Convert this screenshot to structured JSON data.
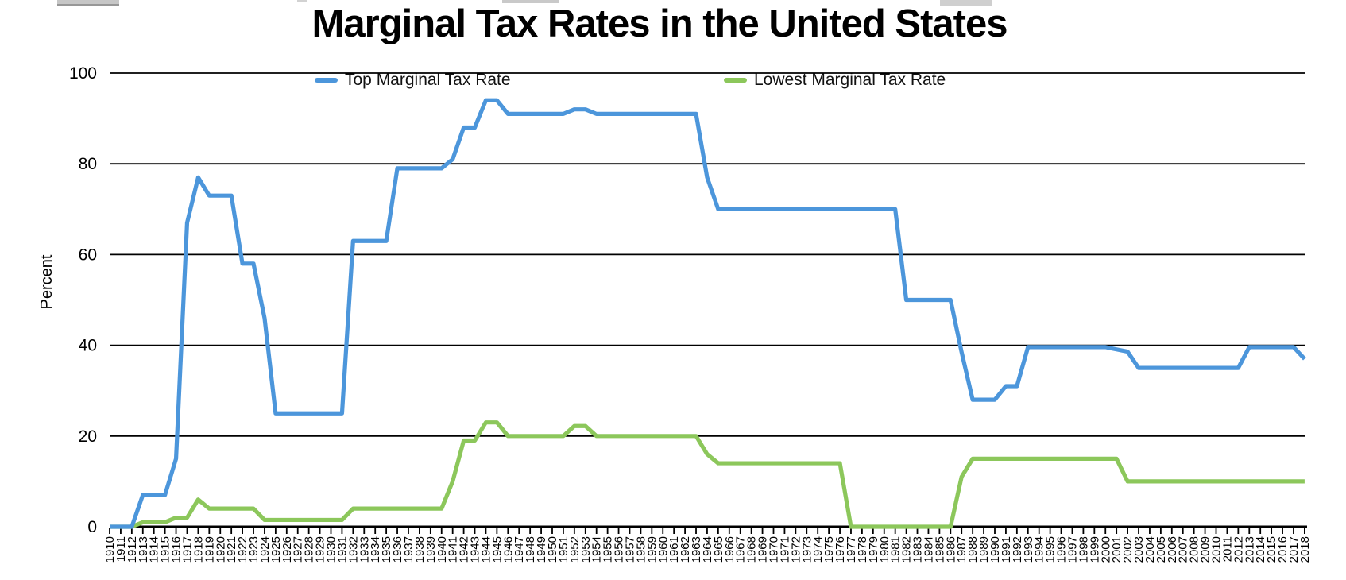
{
  "chart_data": {
    "type": "line",
    "title": "Marginal Tax Rates in the United States",
    "xlabel": "",
    "ylabel": "Percent",
    "ylim": [
      0,
      100
    ],
    "yticks": [
      0,
      20,
      40,
      60,
      80,
      100
    ],
    "grid": true,
    "legend_position": "top",
    "x": [
      1910,
      1911,
      1912,
      1913,
      1914,
      1915,
      1916,
      1917,
      1918,
      1919,
      1920,
      1921,
      1922,
      1923,
      1924,
      1925,
      1926,
      1927,
      1928,
      1929,
      1930,
      1931,
      1932,
      1933,
      1934,
      1935,
      1936,
      1937,
      1938,
      1939,
      1940,
      1941,
      1942,
      1943,
      1944,
      1945,
      1946,
      1947,
      1948,
      1949,
      1950,
      1951,
      1952,
      1953,
      1954,
      1955,
      1956,
      1957,
      1958,
      1959,
      1960,
      1961,
      1962,
      1963,
      1964,
      1965,
      1966,
      1967,
      1968,
      1969,
      1970,
      1971,
      1972,
      1973,
      1974,
      1975,
      1976,
      1977,
      1978,
      1979,
      1980,
      1981,
      1982,
      1983,
      1984,
      1985,
      1986,
      1987,
      1988,
      1989,
      1990,
      1991,
      1992,
      1993,
      1994,
      1995,
      1996,
      1997,
      1998,
      1999,
      2000,
      2001,
      2002,
      2003,
      2004,
      2005,
      2006,
      2007,
      2008,
      2009,
      2010,
      2011,
      2012,
      2013,
      2014,
      2015,
      2016,
      2017,
      2018
    ],
    "series": [
      {
        "name": "Top Marginal Tax Rate",
        "color": "#4c96db",
        "values": [
          0,
          0,
          0,
          7,
          7,
          7,
          15,
          67,
          77,
          73,
          73,
          73,
          58,
          58,
          46,
          25,
          25,
          25,
          25,
          25,
          25,
          25,
          63,
          63,
          63,
          63,
          79,
          79,
          79,
          79,
          79,
          81,
          88,
          88,
          94,
          94,
          91,
          91,
          91,
          91,
          91,
          91,
          92,
          92,
          91,
          91,
          91,
          91,
          91,
          91,
          91,
          91,
          91,
          91,
          77,
          70,
          70,
          70,
          70,
          70,
          70,
          70,
          70,
          70,
          70,
          70,
          70,
          70,
          70,
          70,
          70,
          70,
          50,
          50,
          50,
          50,
          50,
          38.5,
          28,
          28,
          28,
          31,
          31,
          39.6,
          39.6,
          39.6,
          39.6,
          39.6,
          39.6,
          39.6,
          39.6,
          39.1,
          38.6,
          35,
          35,
          35,
          35,
          35,
          35,
          35,
          35,
          35,
          35,
          39.6,
          39.6,
          39.6,
          39.6,
          39.6,
          37
        ]
      },
      {
        "name": "Lowest Marginal Tax Rate",
        "color": "#8cc75b",
        "values": [
          0,
          0,
          0,
          1,
          1,
          1,
          2,
          2,
          6,
          4,
          4,
          4,
          4,
          4,
          1.5,
          1.5,
          1.5,
          1.5,
          1.5,
          1.5,
          1.5,
          1.5,
          4,
          4,
          4,
          4,
          4,
          4,
          4,
          4,
          4,
          10,
          19,
          19,
          23,
          23,
          20,
          20,
          20,
          20,
          20,
          20,
          22.2,
          22.2,
          20,
          20,
          20,
          20,
          20,
          20,
          20,
          20,
          20,
          20,
          16,
          14,
          14,
          14,
          14,
          14,
          14,
          14,
          14,
          14,
          14,
          14,
          14,
          0,
          0,
          0,
          0,
          0,
          0,
          0,
          0,
          0,
          0,
          11,
          15,
          15,
          15,
          15,
          15,
          15,
          15,
          15,
          15,
          15,
          15,
          15,
          15,
          15,
          10,
          10,
          10,
          10,
          10,
          10,
          10,
          10,
          10,
          10,
          10,
          10,
          10,
          10,
          10,
          10,
          10
        ]
      }
    ]
  }
}
